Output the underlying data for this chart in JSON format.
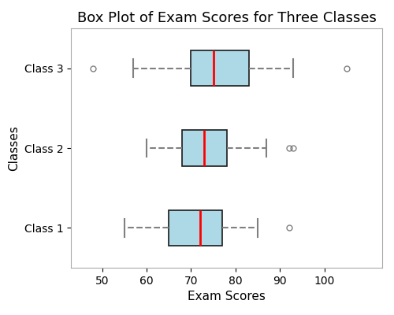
{
  "title": "Box Plot of Exam Scores for Three Classes",
  "xlabel": "Exam Scores",
  "ylabel": "Classes",
  "classes": [
    "Class 1",
    "Class 2",
    "Class 3"
  ],
  "box_stats": [
    {
      "label": "Class 1",
      "med": 72,
      "q1": 65,
      "q3": 77,
      "whislo": 55,
      "whishi": 85,
      "fliers": [
        92
      ]
    },
    {
      "label": "Class 2",
      "med": 73,
      "q1": 68,
      "q3": 78,
      "whislo": 60,
      "whishi": 87,
      "fliers": [
        92,
        93
      ]
    },
    {
      "label": "Class 3",
      "med": 75,
      "q1": 70,
      "q3": 83,
      "whislo": 57,
      "whishi": 93,
      "fliers": [
        48,
        105
      ]
    }
  ],
  "xlim": [
    43,
    113
  ],
  "xticks": [
    50,
    60,
    70,
    80,
    90,
    100
  ],
  "box_facecolor": "#add8e6",
  "median_color": "red",
  "whisker_color": "#808080",
  "cap_color": "#808080",
  "flier_color": "#808080",
  "box_edgecolor": "#1a1a1a",
  "whisker_linestyle": "--",
  "title_fontsize": 13,
  "label_fontsize": 11,
  "tick_fontsize": 10,
  "box_width": 0.45,
  "figsize": [
    5.0,
    4.0
  ],
  "dpi": 100
}
